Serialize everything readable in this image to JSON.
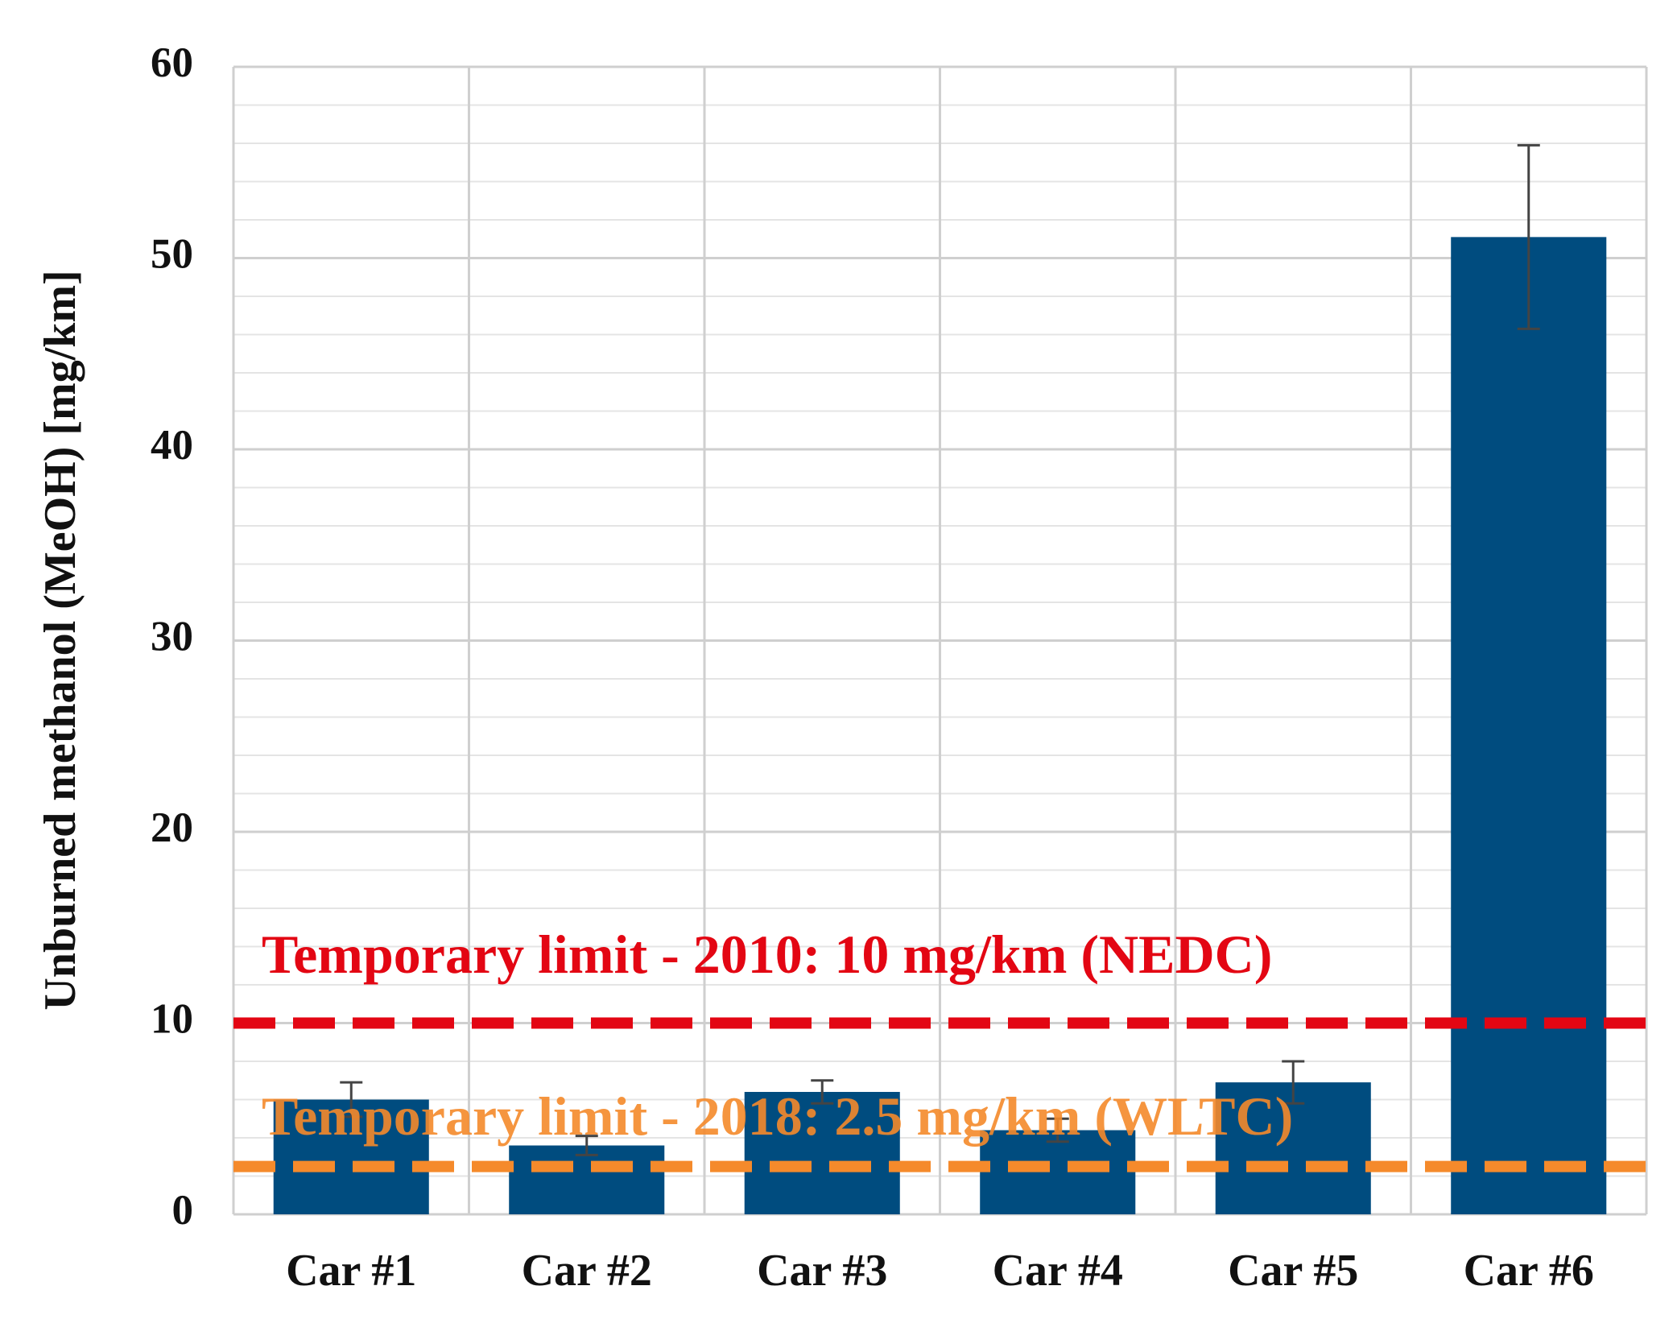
{
  "chart_data": {
    "type": "bar",
    "ylabel": "Unburned methanol (MeOH) [mg/km]",
    "categories": [
      "Car #1",
      "Car #2",
      "Car #3",
      "Car #4",
      "Car #5",
      "Car #6"
    ],
    "values": [
      6.0,
      3.6,
      6.4,
      4.4,
      6.9,
      51.1
    ],
    "errors": [
      0.9,
      0.5,
      0.6,
      0.6,
      1.1,
      4.8
    ],
    "color": "#004c7f",
    "ylim": [
      0,
      60
    ],
    "yticks": [
      0,
      10,
      20,
      30,
      40,
      50,
      60
    ],
    "grid": true,
    "minor_grid": true,
    "reference_lines": [
      {
        "value": 10,
        "label": "Temporary limit - 2010: 10 mg/km (NEDC)",
        "color": "#e30613"
      },
      {
        "value": 2.5,
        "label": "Temporary limit - 2018: 2.5 mg/km (WLTC)",
        "color": "#f58a2b"
      }
    ]
  }
}
